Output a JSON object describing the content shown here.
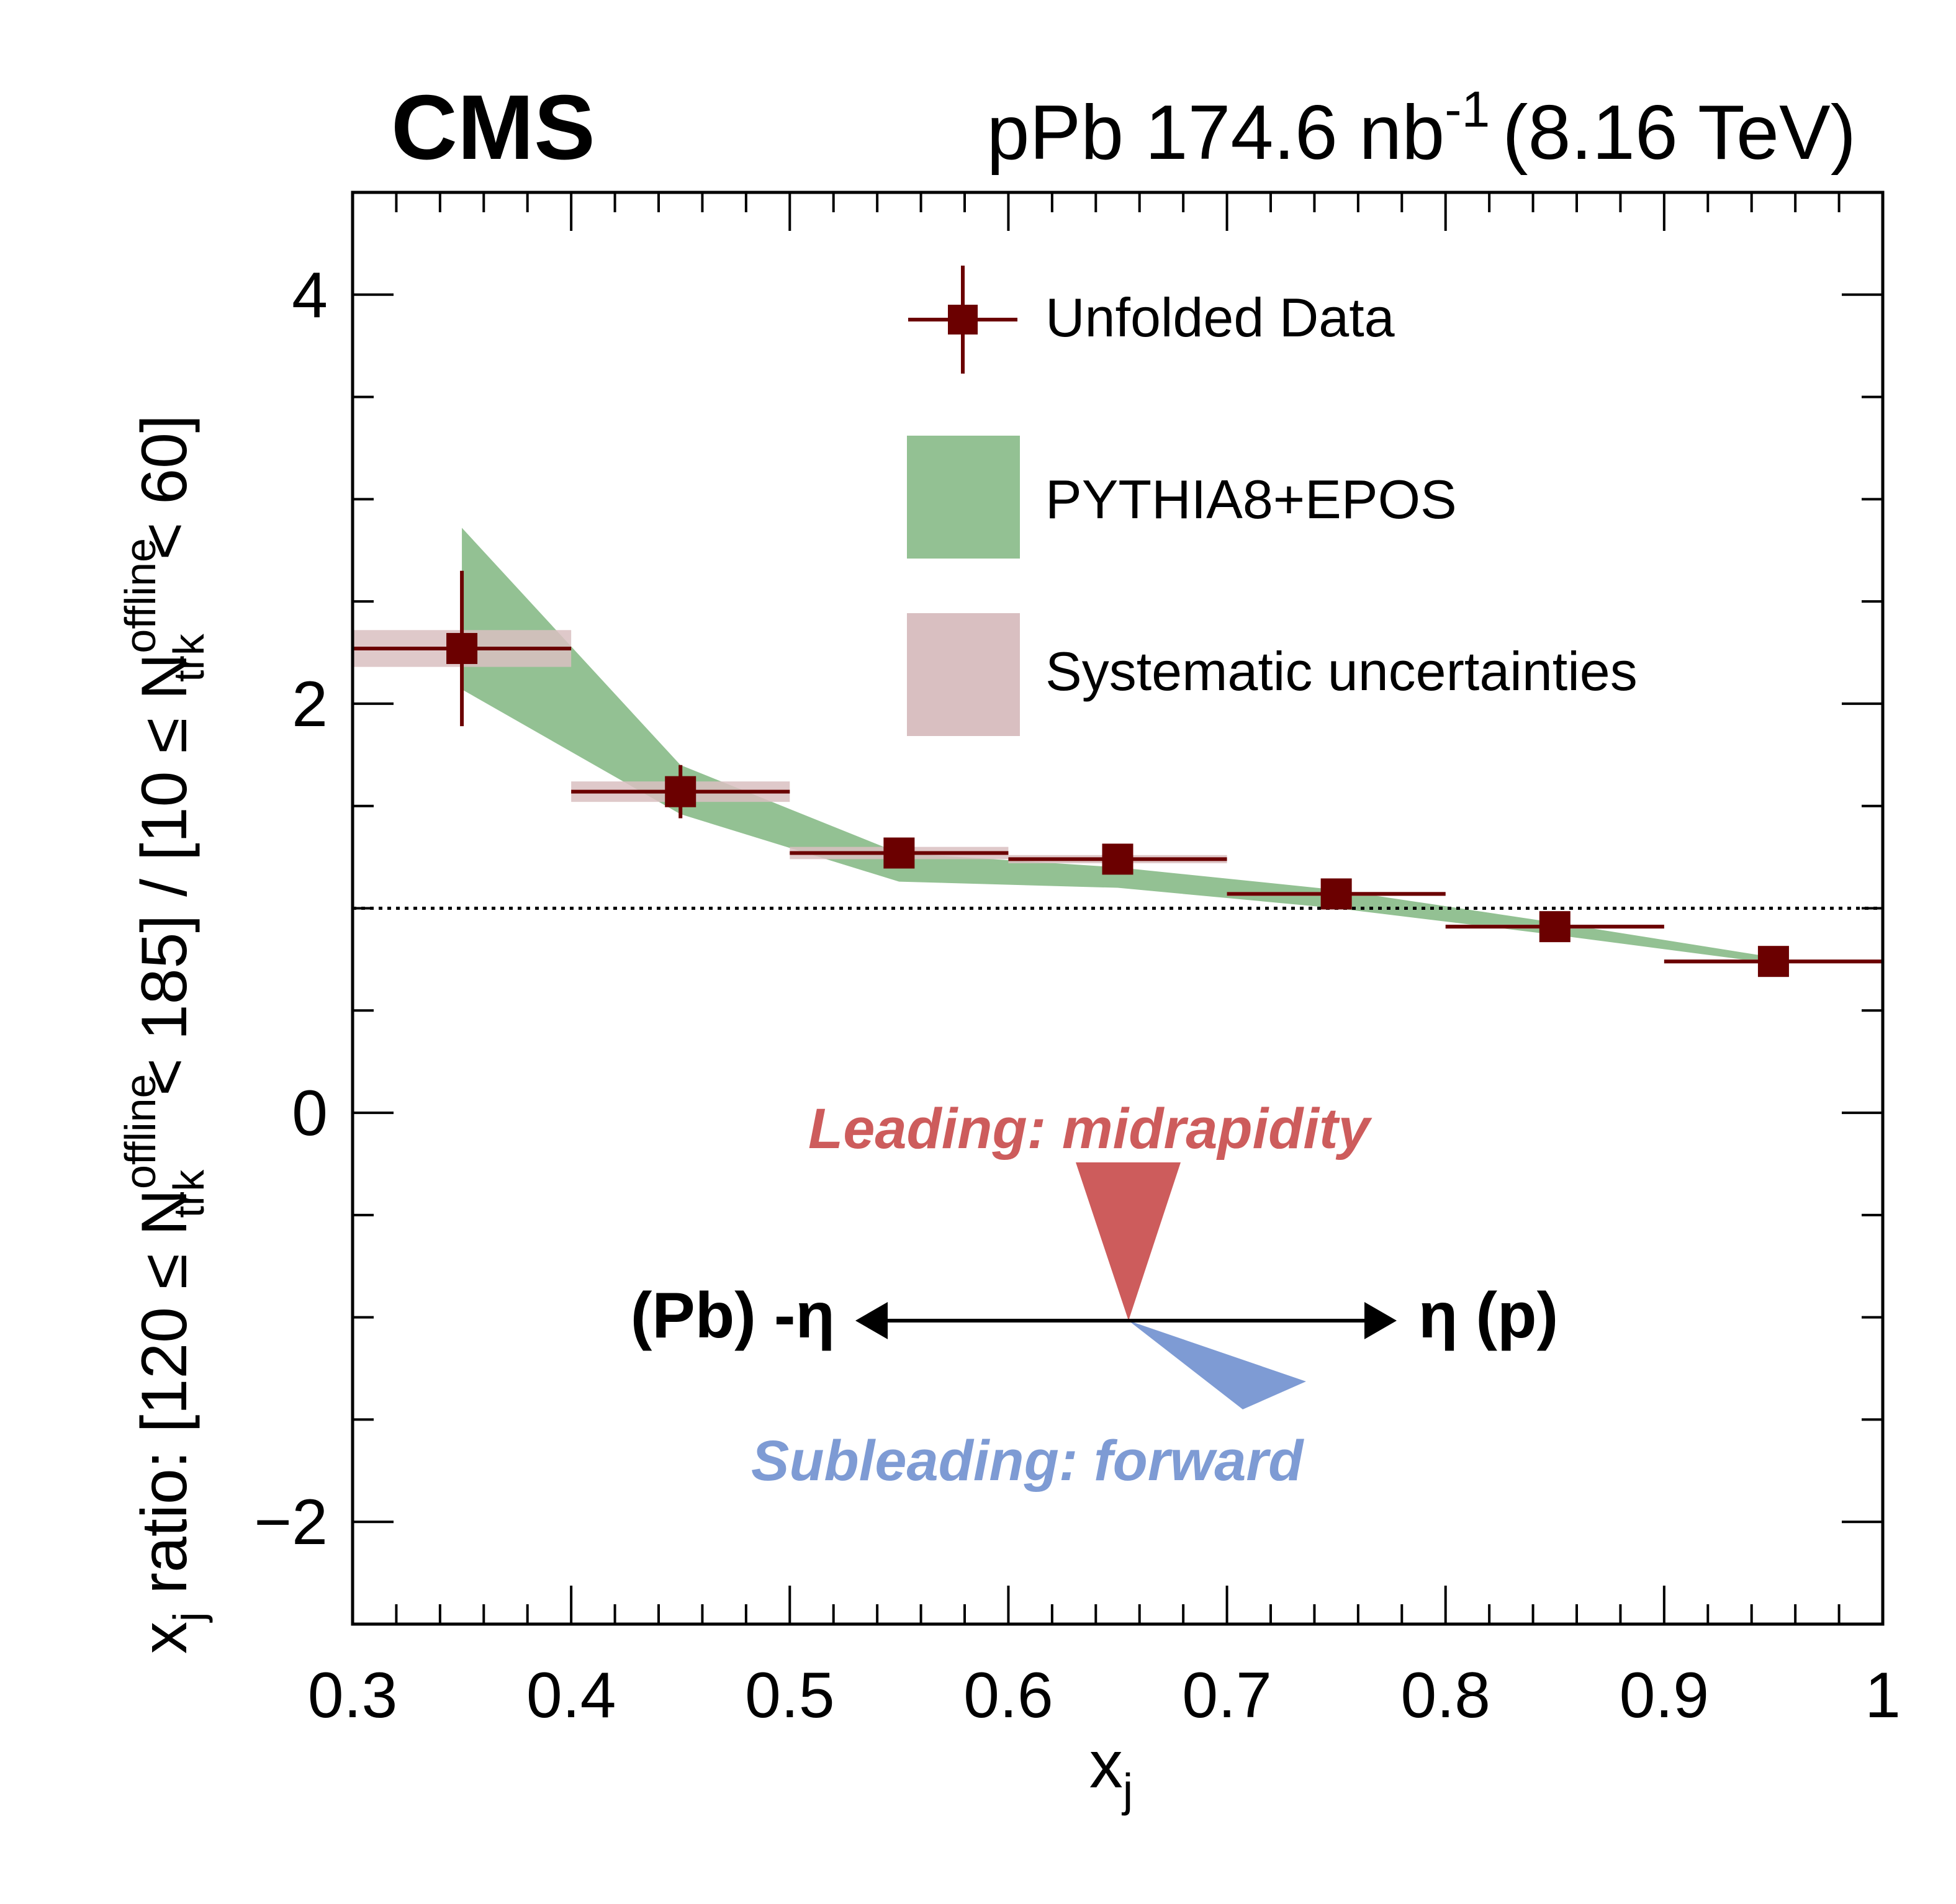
{
  "header": {
    "experiment": "CMS",
    "lumi_prefix": "pPb 174.6 nb",
    "lumi_exp": "-1",
    "energy": "(8.16 TeV)"
  },
  "chart_data": {
    "type": "scatter",
    "xlabel": {
      "base": "x",
      "sub": "j"
    },
    "ylabel": {
      "p1": "x",
      "p1_sub": "j",
      "p2": " ratio: [120 ≤ N",
      "p3_sup": "offline",
      "p3_sub": "trk",
      "p4": " < 185] / [10 ≤ N",
      "p5_sup": "offline",
      "p5_sub": "trk",
      "p6": " < 60]"
    },
    "xlim": [
      0.3,
      1.0
    ],
    "ylim": [
      -2.5,
      4.5
    ],
    "x_ticks": [
      "0.3",
      "0.4",
      "0.5",
      "0.6",
      "0.7",
      "0.8",
      "0.9",
      "1"
    ],
    "y_ticks": [
      "−2",
      "0",
      "2",
      "4"
    ],
    "reference_line": 1.0,
    "series": [
      {
        "name": "Unfolded Data",
        "color": "#6b0000",
        "points": [
          {
            "x": 0.35,
            "y": 2.27,
            "xlo": 0.3,
            "xhi": 0.4,
            "stat": 0.38,
            "sys": 0.09
          },
          {
            "x": 0.45,
            "y": 1.57,
            "xlo": 0.4,
            "xhi": 0.5,
            "stat": 0.13,
            "sys": 0.05
          },
          {
            "x": 0.55,
            "y": 1.27,
            "xlo": 0.5,
            "xhi": 0.6,
            "stat": 0.04,
            "sys": 0.03
          },
          {
            "x": 0.65,
            "y": 1.24,
            "xlo": 0.6,
            "xhi": 0.7,
            "stat": 0.03,
            "sys": 0.02
          },
          {
            "x": 0.75,
            "y": 1.07,
            "xlo": 0.7,
            "xhi": 0.8,
            "stat": 0.02,
            "sys": 0.01
          },
          {
            "x": 0.85,
            "y": 0.91,
            "xlo": 0.8,
            "xhi": 0.9,
            "stat": 0.02,
            "sys": 0.01
          },
          {
            "x": 0.95,
            "y": 0.74,
            "xlo": 0.9,
            "xhi": 1.0,
            "stat": 0.02,
            "sys": 0.01
          }
        ]
      },
      {
        "name": "PYTHIA8+EPOS",
        "color": "#93c193",
        "band": [
          {
            "x": 0.35,
            "lo": 2.07,
            "hi": 2.86
          },
          {
            "x": 0.45,
            "lo": 1.46,
            "hi": 1.7
          },
          {
            "x": 0.55,
            "lo": 1.13,
            "hi": 1.27
          },
          {
            "x": 0.65,
            "lo": 1.1,
            "hi": 1.2
          },
          {
            "x": 0.75,
            "lo": 1.0,
            "hi": 1.09
          },
          {
            "x": 0.85,
            "lo": 0.87,
            "hi": 0.93
          },
          {
            "x": 0.95,
            "lo": 0.73,
            "hi": 0.76
          }
        ]
      },
      {
        "name": "Systematic uncertainties",
        "color": "#d9bfc1"
      }
    ],
    "legend_position": "top-right"
  },
  "diagram": {
    "leading_label": "Leading: midrapidity",
    "leading_color": "#cd5c5c",
    "subleading_label": "Subleading: forward",
    "subleading_color": "#7e9bd4",
    "left_label": "(Pb) -η",
    "right_label": "η (p)"
  }
}
